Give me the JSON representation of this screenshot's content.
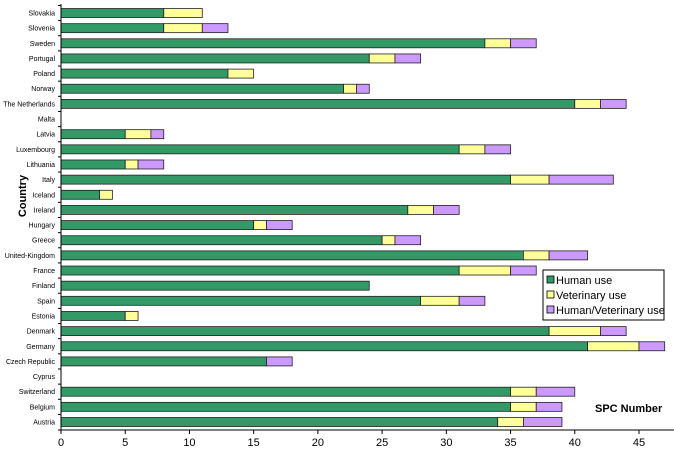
{
  "chart_data": {
    "type": "bar",
    "orientation": "horizontal",
    "stacked": true,
    "title": "",
    "xlabel": "SPC Number",
    "ylabel": "Country",
    "xlim": [
      0,
      47.7
    ],
    "xticks": [
      0,
      5,
      10,
      15,
      20,
      25,
      30,
      35,
      40,
      45
    ],
    "grid": false,
    "legend_position": "right-middle",
    "categories": [
      "Slovakia",
      "Slovenia",
      "Sweden",
      "Portugal",
      "Poland",
      "Norway",
      "The Netherlands",
      "Malta",
      "Latvia",
      "Luxembourg",
      "Lithuania",
      "Italy",
      "Iceland",
      "Ireland",
      "Hungary",
      "Greece",
      "United-Kingdom",
      "France",
      "Finland",
      "Spain",
      "Estonia",
      "Denmark",
      "Germany",
      "Czech Republic",
      "Cyprus",
      "Switzerland",
      "Belgium",
      "Austria"
    ],
    "series": [
      {
        "name": "Human use",
        "color": "#339966",
        "values": [
          8,
          8,
          33,
          24,
          13,
          22,
          40,
          0,
          5,
          31,
          5,
          35,
          3,
          27,
          15,
          25,
          36,
          31,
          24,
          28,
          5,
          38,
          41,
          16,
          0,
          35,
          35,
          34
        ]
      },
      {
        "name": "Veterinary use",
        "color": "#FFFF99",
        "values": [
          3,
          3,
          2,
          2,
          2,
          1,
          2,
          0,
          2,
          2,
          1,
          3,
          1,
          2,
          1,
          1,
          2,
          4,
          0,
          3,
          1,
          4,
          4,
          0,
          0,
          2,
          2,
          2
        ]
      },
      {
        "name": "Human/Veterinary use",
        "color": "#CC99FF",
        "values": [
          0,
          2,
          2,
          2,
          0,
          1,
          2,
          0,
          1,
          2,
          2,
          5,
          0,
          2,
          2,
          2,
          3,
          2,
          0,
          2,
          0,
          2,
          2,
          2,
          0,
          3,
          2,
          3
        ]
      }
    ]
  }
}
